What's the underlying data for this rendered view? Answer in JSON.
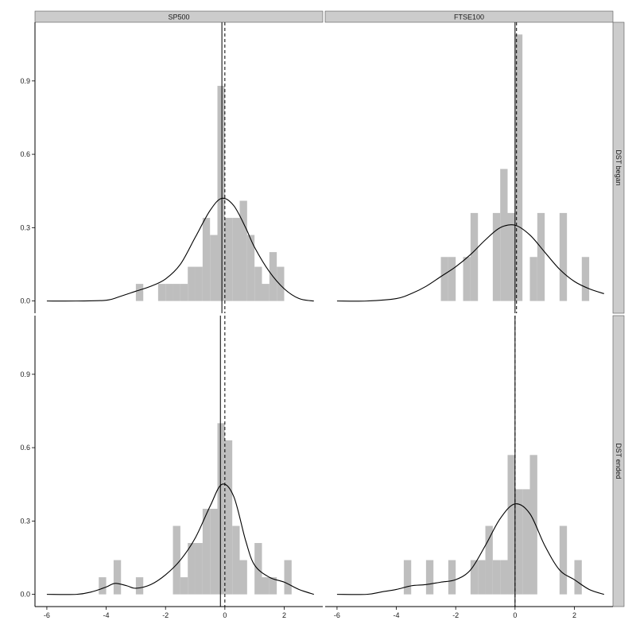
{
  "chart_data": {
    "type": "bar",
    "x_ticks": [
      "-6",
      "-4",
      "-2",
      "0",
      "2"
    ],
    "x_tick_values": [
      -6,
      -4,
      -2,
      0,
      2
    ],
    "y_ticks": [
      "0.0",
      "0.3",
      "0.6",
      "0.9"
    ],
    "y_tick_values": [
      0.0,
      0.3,
      0.6,
      0.9
    ],
    "xlim": [
      -6.4,
      3.3
    ],
    "ylim": [
      -0.05,
      1.14
    ],
    "grid": false,
    "bin_width": 0.25,
    "columns": [
      "SP500",
      "FTSE100"
    ],
    "rows": [
      "DST began",
      "DST ended"
    ],
    "panels": [
      {
        "column": "SP500",
        "row": "DST began",
        "solid_line_x": -0.1,
        "dashed_line_x": 0.0,
        "bins": [
          {
            "x": -3.0,
            "y": 0.07
          },
          {
            "x": -2.25,
            "y": 0.07
          },
          {
            "x": -2.0,
            "y": 0.07
          },
          {
            "x": -1.75,
            "y": 0.07
          },
          {
            "x": -1.5,
            "y": 0.07
          },
          {
            "x": -1.25,
            "y": 0.14
          },
          {
            "x": -1.0,
            "y": 0.14
          },
          {
            "x": -0.75,
            "y": 0.34
          },
          {
            "x": -0.5,
            "y": 0.27
          },
          {
            "x": -0.25,
            "y": 0.88
          },
          {
            "x": 0.0,
            "y": 0.34
          },
          {
            "x": 0.25,
            "y": 0.34
          },
          {
            "x": 0.5,
            "y": 0.41
          },
          {
            "x": 0.75,
            "y": 0.27
          },
          {
            "x": 1.0,
            "y": 0.14
          },
          {
            "x": 1.25,
            "y": 0.07
          },
          {
            "x": 1.5,
            "y": 0.2
          },
          {
            "x": 1.75,
            "y": 0.14
          }
        ],
        "density": [
          {
            "x": -6,
            "y": 0.0
          },
          {
            "x": -5,
            "y": 0.0
          },
          {
            "x": -4,
            "y": 0.003
          },
          {
            "x": -3.5,
            "y": 0.02
          },
          {
            "x": -3,
            "y": 0.04
          },
          {
            "x": -2.5,
            "y": 0.06
          },
          {
            "x": -2,
            "y": 0.09
          },
          {
            "x": -1.5,
            "y": 0.15
          },
          {
            "x": -1,
            "y": 0.26
          },
          {
            "x": -0.5,
            "y": 0.37
          },
          {
            "x": -0.1,
            "y": 0.42
          },
          {
            "x": 0.3,
            "y": 0.39
          },
          {
            "x": 0.7,
            "y": 0.3
          },
          {
            "x": 1.0,
            "y": 0.22
          },
          {
            "x": 1.5,
            "y": 0.12
          },
          {
            "x": 2.0,
            "y": 0.05
          },
          {
            "x": 2.5,
            "y": 0.01
          },
          {
            "x": 3.0,
            "y": 0.0
          }
        ]
      },
      {
        "column": "FTSE100",
        "row": "DST began",
        "solid_line_x": 0.0,
        "dashed_line_x": 0.05,
        "bins": [
          {
            "x": -2.5,
            "y": 0.18
          },
          {
            "x": -2.25,
            "y": 0.18
          },
          {
            "x": -1.75,
            "y": 0.18
          },
          {
            "x": -1.5,
            "y": 0.36
          },
          {
            "x": -0.75,
            "y": 0.36
          },
          {
            "x": -0.5,
            "y": 0.54
          },
          {
            "x": -0.25,
            "y": 0.36
          },
          {
            "x": 0.0,
            "y": 1.09
          },
          {
            "x": 0.5,
            "y": 0.18
          },
          {
            "x": 0.75,
            "y": 0.36
          },
          {
            "x": 1.5,
            "y": 0.36
          },
          {
            "x": 2.25,
            "y": 0.18
          }
        ],
        "density": [
          {
            "x": -6,
            "y": 0.0
          },
          {
            "x": -5,
            "y": 0.0
          },
          {
            "x": -4,
            "y": 0.01
          },
          {
            "x": -3.5,
            "y": 0.03
          },
          {
            "x": -3,
            "y": 0.06
          },
          {
            "x": -2.5,
            "y": 0.1
          },
          {
            "x": -2,
            "y": 0.14
          },
          {
            "x": -1.5,
            "y": 0.19
          },
          {
            "x": -1,
            "y": 0.25
          },
          {
            "x": -0.5,
            "y": 0.3
          },
          {
            "x": 0.0,
            "y": 0.31
          },
          {
            "x": 0.5,
            "y": 0.27
          },
          {
            "x": 1.0,
            "y": 0.2
          },
          {
            "x": 1.5,
            "y": 0.13
          },
          {
            "x": 2.0,
            "y": 0.08
          },
          {
            "x": 2.5,
            "y": 0.05
          },
          {
            "x": 3.0,
            "y": 0.03
          }
        ]
      },
      {
        "column": "SP500",
        "row": "DST ended",
        "solid_line_x": -0.15,
        "dashed_line_x": 0.0,
        "bins": [
          {
            "x": -4.25,
            "y": 0.07
          },
          {
            "x": -3.75,
            "y": 0.14
          },
          {
            "x": -3.0,
            "y": 0.07
          },
          {
            "x": -1.75,
            "y": 0.28
          },
          {
            "x": -1.5,
            "y": 0.07
          },
          {
            "x": -1.25,
            "y": 0.21
          },
          {
            "x": -1.0,
            "y": 0.21
          },
          {
            "x": -0.75,
            "y": 0.35
          },
          {
            "x": -0.5,
            "y": 0.35
          },
          {
            "x": -0.25,
            "y": 0.7
          },
          {
            "x": 0.0,
            "y": 0.63
          },
          {
            "x": 0.25,
            "y": 0.28
          },
          {
            "x": 0.5,
            "y": 0.14
          },
          {
            "x": 1.0,
            "y": 0.21
          },
          {
            "x": 1.25,
            "y": 0.07
          },
          {
            "x": 1.5,
            "y": 0.07
          },
          {
            "x": 2.0,
            "y": 0.14
          }
        ],
        "density": [
          {
            "x": -6,
            "y": 0.0
          },
          {
            "x": -5,
            "y": 0.0
          },
          {
            "x": -4.5,
            "y": 0.01
          },
          {
            "x": -4,
            "y": 0.03
          },
          {
            "x": -3.7,
            "y": 0.045
          },
          {
            "x": -3.3,
            "y": 0.035
          },
          {
            "x": -3,
            "y": 0.025
          },
          {
            "x": -2.5,
            "y": 0.04
          },
          {
            "x": -2,
            "y": 0.08
          },
          {
            "x": -1.5,
            "y": 0.14
          },
          {
            "x": -1,
            "y": 0.23
          },
          {
            "x": -0.5,
            "y": 0.36
          },
          {
            "x": -0.1,
            "y": 0.45
          },
          {
            "x": 0.3,
            "y": 0.4
          },
          {
            "x": 0.7,
            "y": 0.22
          },
          {
            "x": 1.0,
            "y": 0.12
          },
          {
            "x": 1.5,
            "y": 0.07
          },
          {
            "x": 2.0,
            "y": 0.05
          },
          {
            "x": 2.5,
            "y": 0.02
          },
          {
            "x": 3.0,
            "y": 0.0
          }
        ]
      },
      {
        "column": "FTSE100",
        "row": "DST ended",
        "solid_line_x": 0.0,
        "dashed_line_x": 0.0,
        "bins": [
          {
            "x": -3.75,
            "y": 0.14
          },
          {
            "x": -3.0,
            "y": 0.14
          },
          {
            "x": -2.25,
            "y": 0.14
          },
          {
            "x": -1.5,
            "y": 0.14
          },
          {
            "x": -1.25,
            "y": 0.14
          },
          {
            "x": -1.0,
            "y": 0.28
          },
          {
            "x": -0.75,
            "y": 0.14
          },
          {
            "x": -0.5,
            "y": 0.14
          },
          {
            "x": -0.25,
            "y": 0.57
          },
          {
            "x": 0.0,
            "y": 0.43
          },
          {
            "x": 0.25,
            "y": 0.43
          },
          {
            "x": 0.5,
            "y": 0.57
          },
          {
            "x": 1.5,
            "y": 0.28
          },
          {
            "x": 2.0,
            "y": 0.14
          }
        ],
        "density": [
          {
            "x": -6,
            "y": 0.0
          },
          {
            "x": -5,
            "y": 0.0
          },
          {
            "x": -4.5,
            "y": 0.01
          },
          {
            "x": -4,
            "y": 0.02
          },
          {
            "x": -3.5,
            "y": 0.035
          },
          {
            "x": -3,
            "y": 0.04
          },
          {
            "x": -2.5,
            "y": 0.05
          },
          {
            "x": -2,
            "y": 0.06
          },
          {
            "x": -1.5,
            "y": 0.1
          },
          {
            "x": -1,
            "y": 0.2
          },
          {
            "x": -0.5,
            "y": 0.31
          },
          {
            "x": 0.0,
            "y": 0.37
          },
          {
            "x": 0.5,
            "y": 0.33
          },
          {
            "x": 1.0,
            "y": 0.2
          },
          {
            "x": 1.5,
            "y": 0.1
          },
          {
            "x": 2.0,
            "y": 0.06
          },
          {
            "x": 2.5,
            "y": 0.02
          },
          {
            "x": 3.0,
            "y": 0.0
          }
        ]
      }
    ]
  }
}
